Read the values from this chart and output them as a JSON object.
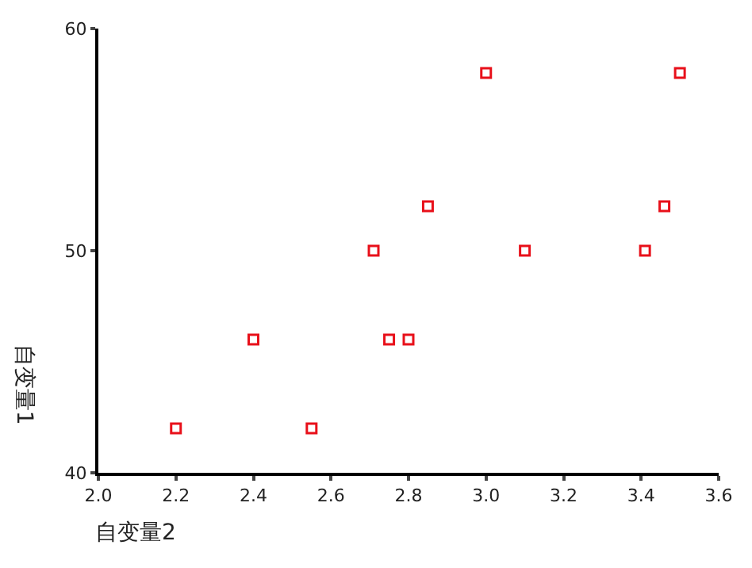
{
  "chart_data": {
    "type": "scatter",
    "xlabel": "自变量2",
    "ylabel": "自变量1",
    "x": [
      2.2,
      2.4,
      2.55,
      2.71,
      2.75,
      2.8,
      2.85,
      3.0,
      3.1,
      3.41,
      3.46,
      3.5
    ],
    "series": [
      {
        "color": "#e8101a",
        "values": [
          42,
          46,
          42,
          50,
          46,
          46,
          52,
          58,
          50,
          50,
          52,
          58
        ]
      }
    ],
    "xlim": [
      2.0,
      3.6
    ],
    "xticks": [
      {
        "value": 2.0,
        "label": "2.0"
      },
      2.2,
      2.4,
      2.6,
      2.8,
      {
        "value": 3.0,
        "label": "3.0"
      },
      3.2,
      3.4,
      3.6
    ],
    "ylim": [
      40,
      60
    ],
    "yticks": [
      40,
      50,
      60
    ],
    "marker": "square"
  }
}
